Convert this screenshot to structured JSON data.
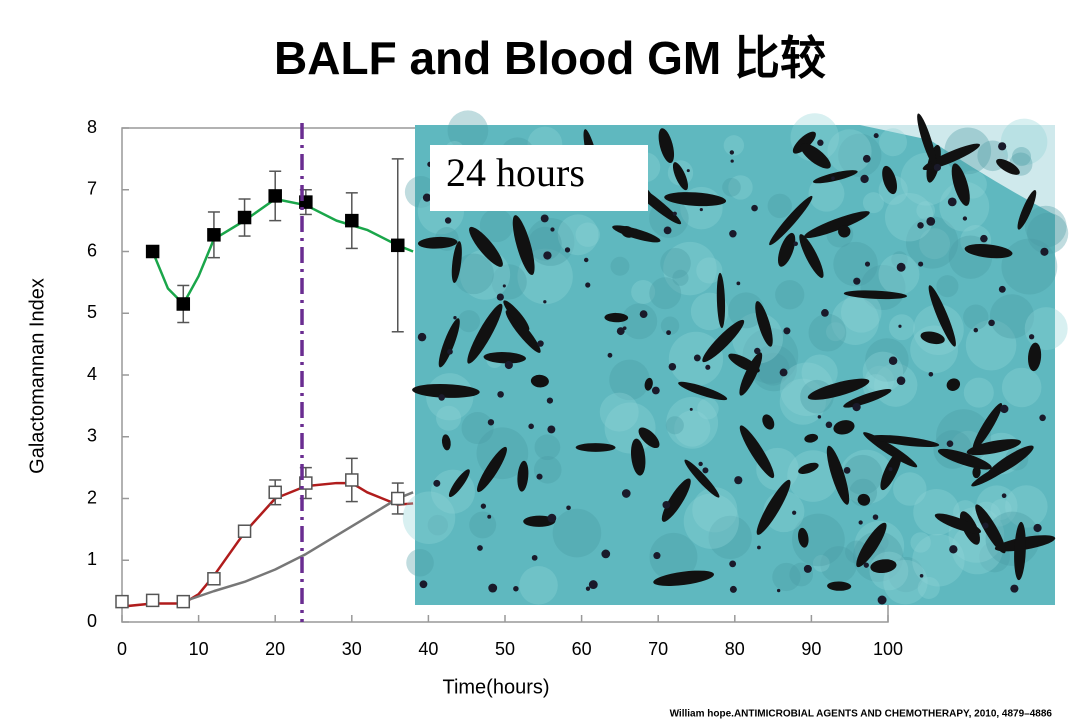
{
  "chart_data": {
    "type": "line",
    "title": "BALF and Blood  GM 比较",
    "x_label": "Time(hours)",
    "y_label": "Galactomannan Index",
    "image_label": "24 hours",
    "citation": "William hope.ANTIMICROBIAL AGENTS AND CHEMOTHERAPY, 2010, 4879–4886",
    "xlim": [
      0,
      100
    ],
    "xticks": [
      0,
      10,
      20,
      30,
      40,
      50,
      60,
      70,
      80,
      90,
      100
    ],
    "ylim": [
      0,
      8
    ],
    "yticks": [
      0,
      1,
      2,
      3,
      4,
      5,
      6,
      7,
      8
    ],
    "vline": {
      "x": 23.5,
      "color": "#6a2d91"
    },
    "series": [
      {
        "color": "#000000",
        "marker": "filled-square",
        "x": [
          4,
          8,
          12,
          16,
          20,
          24,
          30,
          36
        ],
        "values": [
          6.0,
          5.15,
          6.27,
          6.55,
          6.9,
          6.8,
          6.5,
          6.1
        ],
        "errors": [
          null,
          0.3,
          0.37,
          0.3,
          0.4,
          0.2,
          0.45,
          1.4
        ]
      },
      {
        "color": "#555555",
        "marker": "open-square",
        "x": [
          0,
          4,
          8,
          12,
          16,
          20,
          24,
          30,
          36
        ],
        "values": [
          0.33,
          0.35,
          0.33,
          0.7,
          1.47,
          2.1,
          2.25,
          2.3,
          2.0
        ],
        "errors": [
          null,
          null,
          null,
          null,
          null,
          0.2,
          0.25,
          0.35,
          0.25
        ]
      },
      {
        "color": "#1aa64a",
        "marker": "none",
        "x": [
          4,
          6,
          8,
          10,
          12,
          16,
          20,
          24,
          28,
          32,
          36,
          38
        ],
        "values": [
          6.0,
          5.4,
          5.15,
          5.6,
          6.2,
          6.5,
          6.85,
          6.75,
          6.5,
          6.35,
          6.1,
          6.0
        ]
      },
      {
        "color": "#b01c1c",
        "marker": "none",
        "x": [
          0,
          4,
          8,
          10,
          12,
          16,
          20,
          24,
          28,
          30,
          32,
          36,
          38
        ],
        "values": [
          0.25,
          0.3,
          0.3,
          0.45,
          0.75,
          1.45,
          2.0,
          2.2,
          2.25,
          2.25,
          2.1,
          1.9,
          1.92
        ]
      },
      {
        "color": "#777777",
        "marker": "none",
        "x": [
          8,
          12,
          16,
          20,
          24,
          28,
          32,
          36,
          38
        ],
        "values": [
          0.33,
          0.5,
          0.65,
          0.85,
          1.1,
          1.4,
          1.7,
          2.0,
          2.1
        ]
      }
    ]
  }
}
